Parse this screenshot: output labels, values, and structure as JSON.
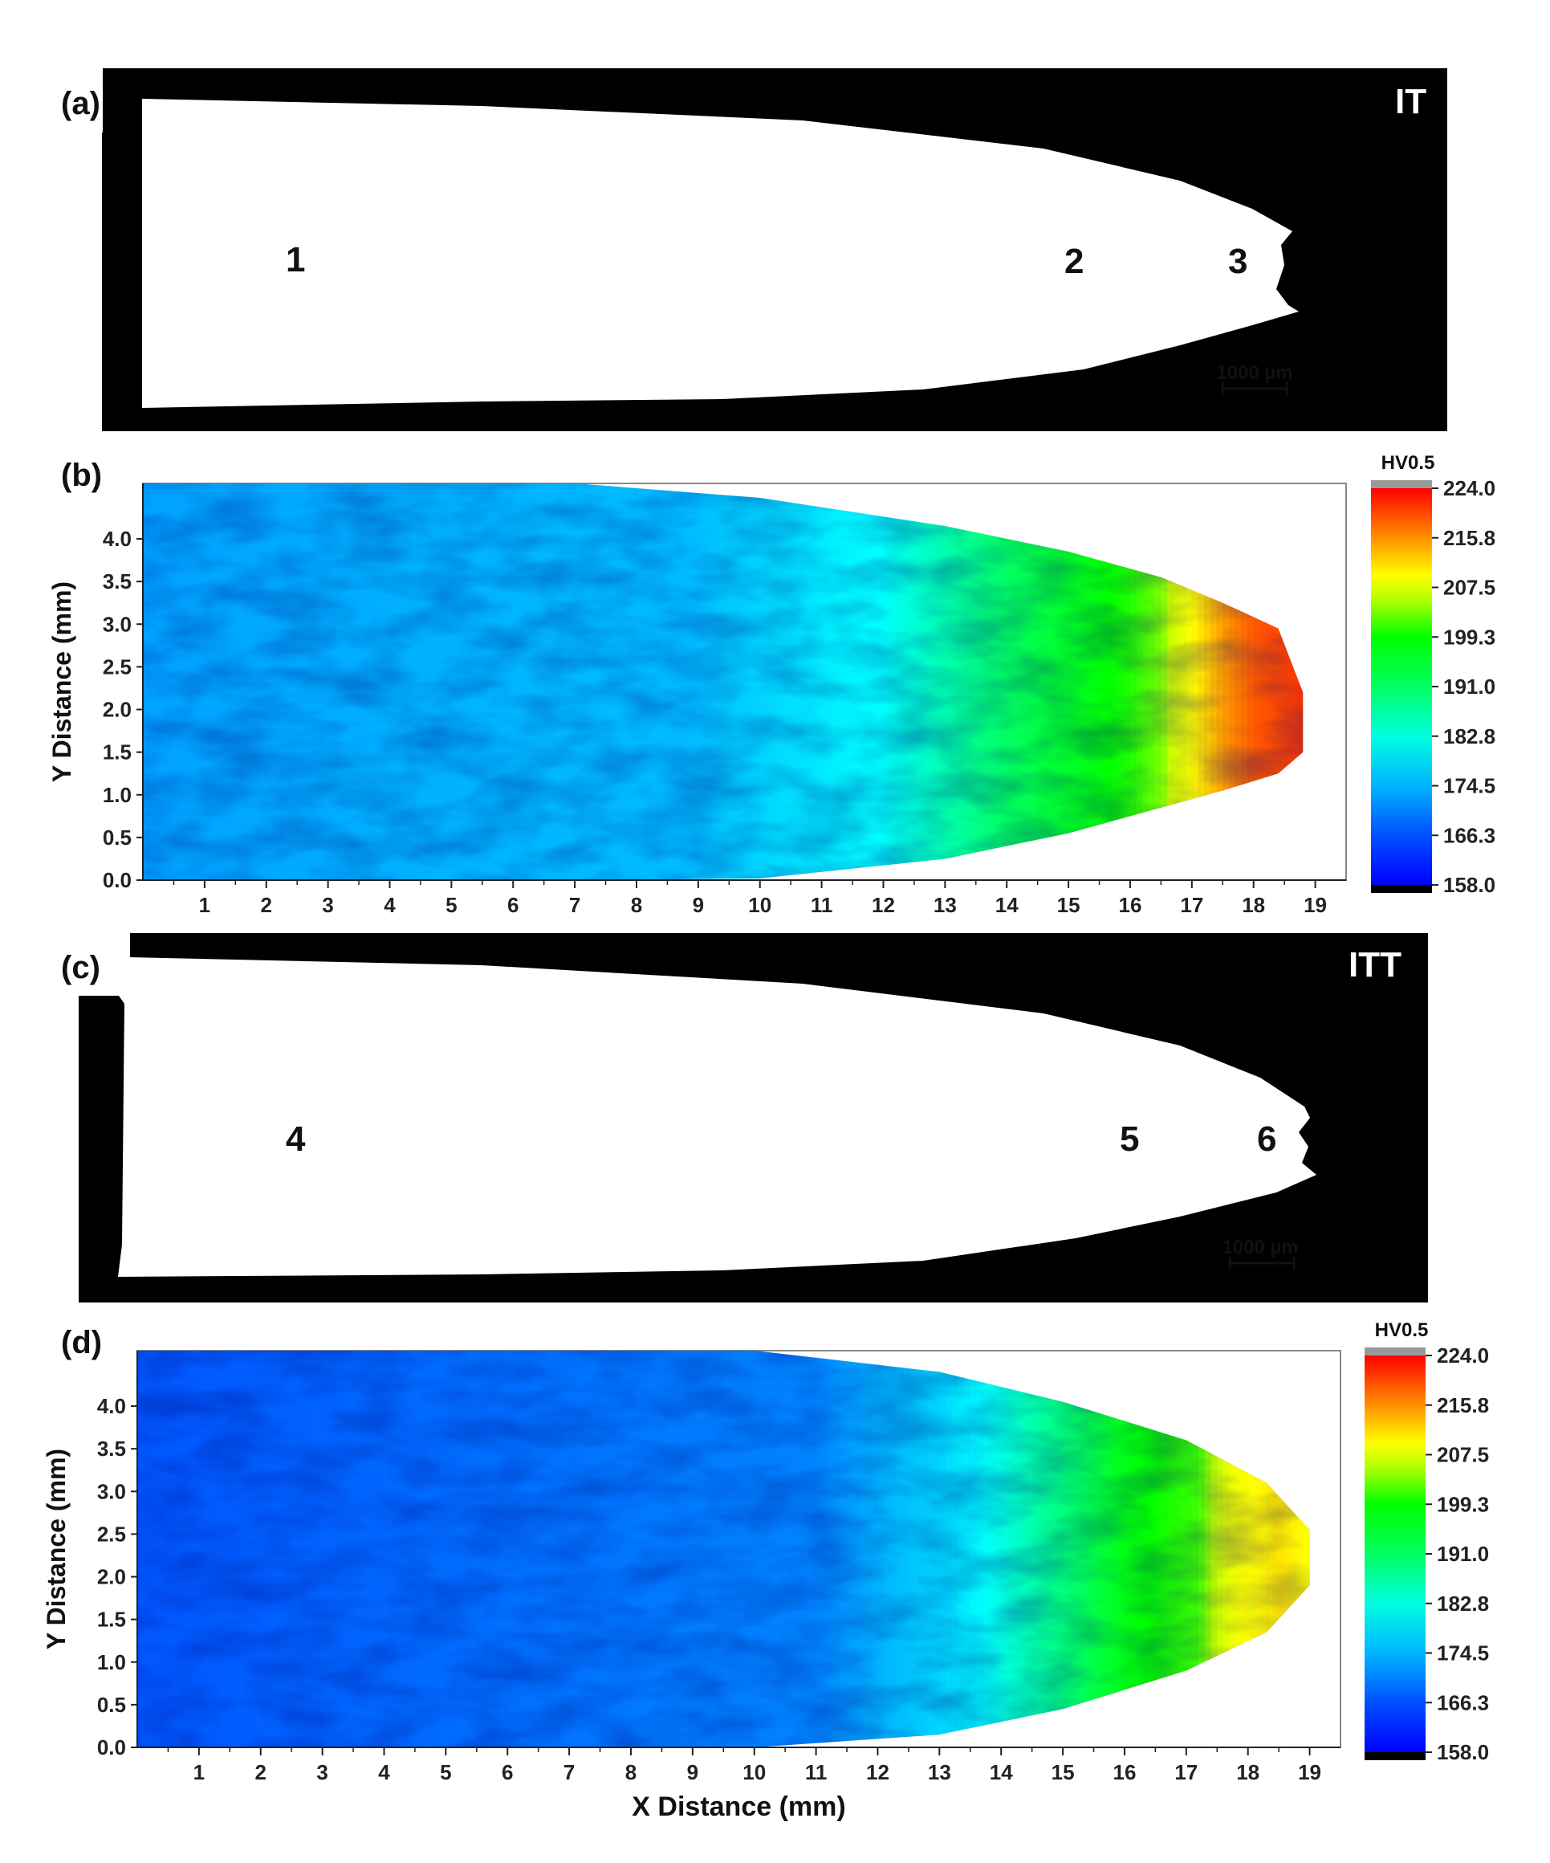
{
  "panels": {
    "a": {
      "letter": "(a)",
      "tag": "IT",
      "markers": [
        "1",
        "2",
        "3"
      ],
      "scale_bar": "1000 µm"
    },
    "c": {
      "letter": "(c)",
      "tag": "ITT",
      "markers": [
        "4",
        "5",
        "6"
      ],
      "scale_bar": "1000 µm"
    }
  },
  "colors": {
    "background": "#ffffff",
    "micrograph_bg": "#000000",
    "specimen": "#ffffff",
    "colormap": [
      "#000000",
      "#0000ff",
      "#0050ff",
      "#00b4ff",
      "#00ffff",
      "#00ff80",
      "#00ff00",
      "#c8ff00",
      "#ffff00",
      "#ffa000",
      "#ff3000",
      "#ff0000",
      "#999999"
    ]
  },
  "chart_data": [
    {
      "type": "heatmap",
      "panel": "(b)",
      "title": "",
      "xlabel": "",
      "ylabel": "Y Distance (mm)",
      "xlim": [
        0,
        19.5
      ],
      "ylim": [
        0,
        4.65
      ],
      "xticks": [
        "1",
        "2",
        "3",
        "4",
        "5",
        "6",
        "7",
        "8",
        "9",
        "10",
        "11",
        "12",
        "13",
        "14",
        "15",
        "16",
        "17",
        "18",
        "19"
      ],
      "yticks": [
        "0.0",
        "0.5",
        "1.0",
        "1.5",
        "2.0",
        "2.5",
        "3.0",
        "3.5",
        "4.0"
      ],
      "colorbar": {
        "title": "HV0.5",
        "ticks": [
          "224.0",
          "215.8",
          "207.5",
          "199.3",
          "191.0",
          "182.8",
          "174.5",
          "166.3",
          "158.0"
        ],
        "min": 158.0,
        "max": 224.0
      },
      "profile": [
        [
          0,
          0,
          4.65
        ],
        [
          7,
          0,
          4.65
        ],
        [
          10,
          0.02,
          4.48
        ],
        [
          13,
          0.25,
          4.15
        ],
        [
          15,
          0.55,
          3.85
        ],
        [
          16.5,
          0.85,
          3.55
        ],
        [
          17.5,
          1.05,
          3.25
        ],
        [
          18.4,
          1.25,
          2.95
        ],
        [
          18.8,
          1.5,
          2.2
        ]
      ],
      "hardness_vs_x": [
        [
          0,
          170
        ],
        [
          9,
          172
        ],
        [
          12,
          178
        ],
        [
          14,
          186
        ],
        [
          16,
          192
        ],
        [
          16.5,
          195
        ],
        [
          17,
          204
        ],
        [
          17.5,
          211
        ],
        [
          18,
          215
        ],
        [
          18.8,
          217
        ]
      ]
    },
    {
      "type": "heatmap",
      "panel": "(d)",
      "title": "",
      "xlabel": "X Distance (mm)",
      "ylabel": "Y Distance (mm)",
      "xlim": [
        0,
        19.5
      ],
      "ylim": [
        0,
        4.65
      ],
      "xticks": [
        "1",
        "2",
        "3",
        "4",
        "5",
        "6",
        "7",
        "8",
        "9",
        "10",
        "11",
        "12",
        "13",
        "14",
        "15",
        "16",
        "17",
        "18",
        "19"
      ],
      "yticks": [
        "0.0",
        "0.5",
        "1.0",
        "1.5",
        "2.0",
        "2.5",
        "3.0",
        "3.5",
        "4.0"
      ],
      "colorbar": {
        "title": "HV0.5",
        "ticks": [
          "224.0",
          "215.8",
          "207.5",
          "199.3",
          "191.0",
          "182.8",
          "174.5",
          "166.3",
          "158.0"
        ],
        "min": 158.0,
        "max": 224.0
      },
      "profile": [
        [
          0,
          0,
          4.65
        ],
        [
          10,
          0,
          4.65
        ],
        [
          13,
          0.15,
          4.4
        ],
        [
          15,
          0.45,
          4.05
        ],
        [
          17,
          0.9,
          3.6
        ],
        [
          18.3,
          1.35,
          3.1
        ],
        [
          19,
          1.9,
          2.55
        ]
      ],
      "hardness_vs_x": [
        [
          0,
          165
        ],
        [
          11,
          168
        ],
        [
          13,
          174
        ],
        [
          14.5,
          182
        ],
        [
          16,
          190
        ],
        [
          17.2,
          193
        ],
        [
          17.8,
          203
        ],
        [
          18.5,
          206
        ],
        [
          19,
          204
        ]
      ]
    }
  ]
}
